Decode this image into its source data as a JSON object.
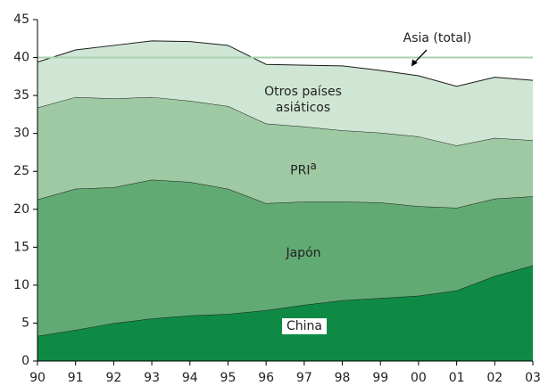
{
  "chart_data": {
    "type": "stacked_area",
    "categories": [
      "90",
      "91",
      "92",
      "93",
      "94",
      "95",
      "96",
      "97",
      "98",
      "99",
      "00",
      "01",
      "02",
      "03"
    ],
    "series": [
      {
        "name": "China",
        "color": "#0f8a45",
        "values": [
          3.3,
          4.1,
          5.0,
          5.6,
          6.0,
          6.2,
          6.7,
          7.4,
          8.0,
          8.3,
          8.6,
          9.3,
          11.2,
          12.6
        ]
      },
      {
        "name": "Japón",
        "color": "#62aa74",
        "values": [
          18.0,
          18.6,
          17.9,
          18.3,
          17.6,
          16.5,
          14.1,
          13.6,
          13.0,
          12.6,
          11.8,
          10.9,
          10.2,
          9.1
        ]
      },
      {
        "name": "PRI",
        "name_superscript": "a",
        "color": "#9ec9a3",
        "values": [
          12.1,
          12.1,
          11.7,
          10.9,
          10.7,
          10.9,
          10.5,
          9.9,
          9.4,
          9.2,
          9.2,
          8.2,
          8.0,
          7.4
        ]
      },
      {
        "name": "Otros países asiáticos",
        "color": "#d0e6d4",
        "values": [
          6.0,
          6.2,
          7.0,
          7.4,
          7.8,
          8.0,
          7.8,
          8.1,
          8.5,
          8.2,
          8.0,
          7.8,
          8.0,
          7.9
        ]
      }
    ],
    "reference_line": {
      "label": "Asia (total)",
      "value": 40,
      "color": "#a9d1ae"
    },
    "ylim": [
      0,
      45
    ],
    "yticks": [
      0,
      5,
      10,
      15,
      20,
      25,
      30,
      35,
      40,
      45
    ],
    "grid": false
  }
}
